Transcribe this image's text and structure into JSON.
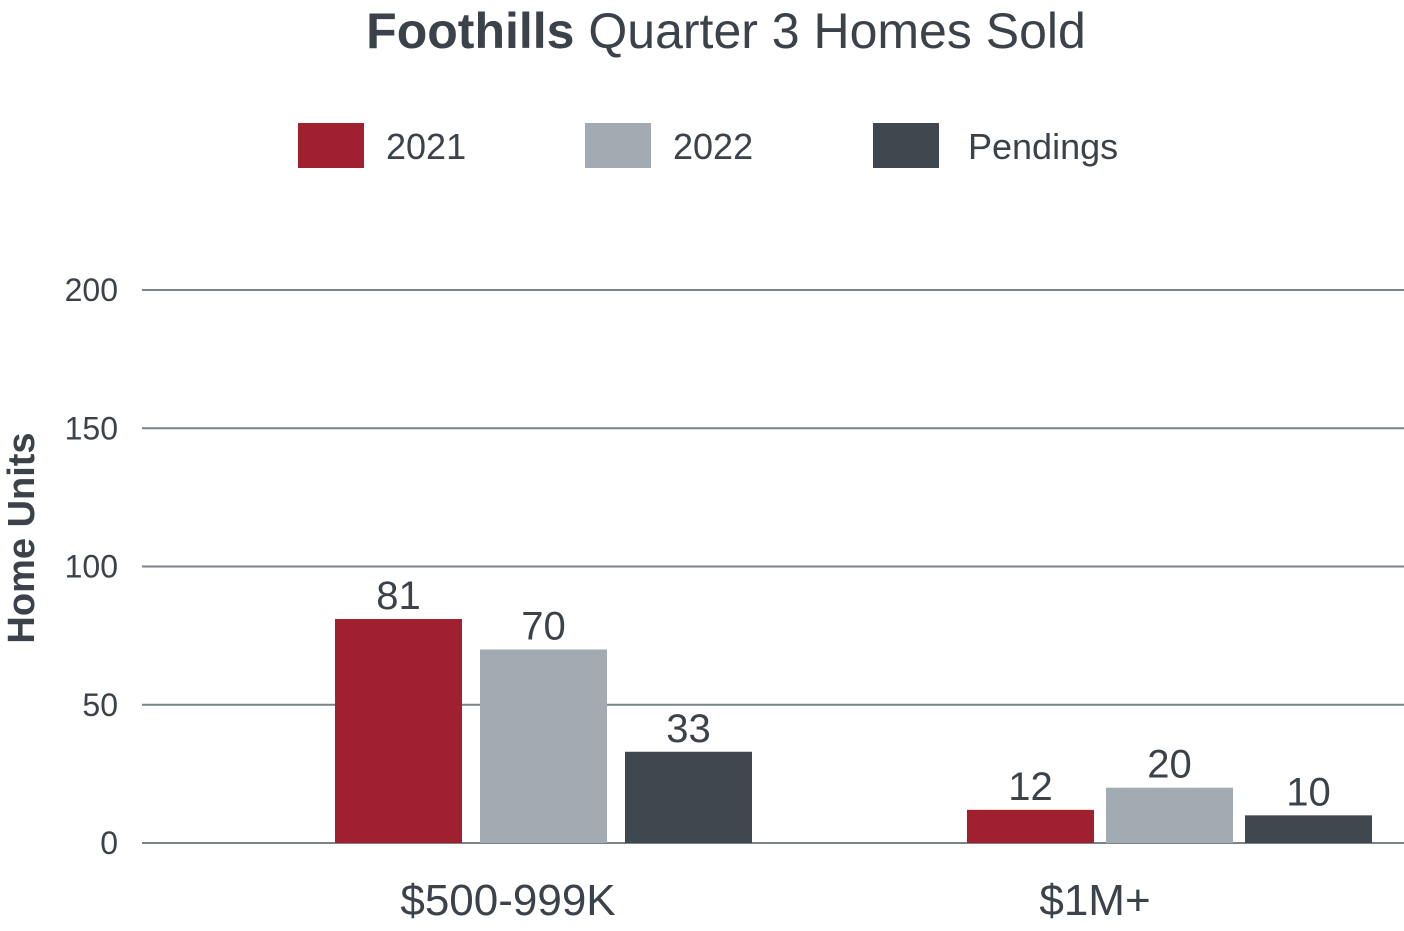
{
  "chart_data": {
    "type": "bar",
    "title_bold": "Foothills",
    "title_rest": "Quarter 3 Homes Sold",
    "ylabel": "Home Units",
    "xlabel": "",
    "ylim": [
      0,
      200
    ],
    "yticks": [
      0,
      50,
      100,
      150,
      200
    ],
    "categories": [
      "$500-999K",
      "$1M+"
    ],
    "series": [
      {
        "name": "2021",
        "color": "#a02030",
        "values": [
          81,
          12
        ]
      },
      {
        "name": "2022",
        "color": "#a2abb1",
        "values": [
          70,
          20
        ]
      },
      {
        "name": "Pendings",
        "color": "#3f474f",
        "values": [
          33,
          10
        ]
      }
    ],
    "legend": "top-center",
    "grid": true
  }
}
